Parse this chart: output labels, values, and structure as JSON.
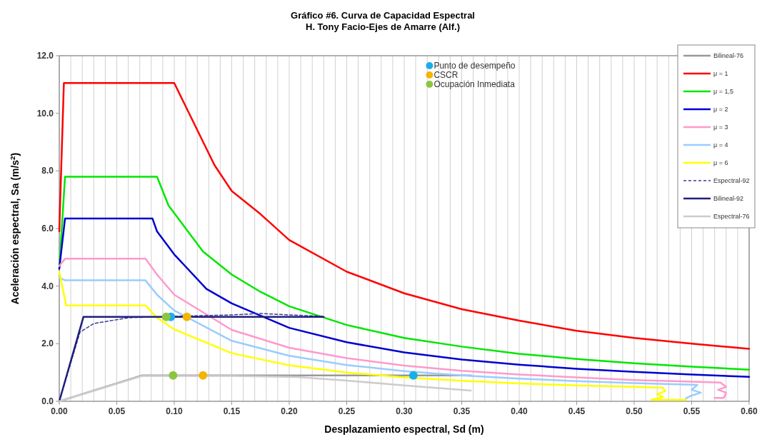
{
  "chart_data": {
    "type": "line",
    "title": "Gráfico #6. Curva de Capacidad Espectral",
    "subtitle": "H. Tony Facio-Ejes de Amarre (Alf.)",
    "xlabel": "Desplazamiento espectral, Sd (m)",
    "ylabel": "Aceleración espectral, Sa (m/s$^{2}$)",
    "xlim": [
      0,
      0.6
    ],
    "ylim": [
      0,
      12
    ],
    "xticks": [
      {
        "value": 0,
        "label": "0.00"
      },
      {
        "value": 0.01,
        "label": null
      },
      {
        "value": 0.02,
        "label": null
      },
      {
        "value": 0.03,
        "label": null
      },
      {
        "value": 0.04,
        "label": null
      },
      {
        "value": 0.05,
        "label": "0.05"
      },
      {
        "value": 0.06,
        "label": null
      },
      {
        "value": 0.07,
        "label": null
      },
      {
        "value": 0.08,
        "label": null
      },
      {
        "value": 0.09,
        "label": null
      },
      {
        "value": 0.1,
        "label": "0.10"
      },
      {
        "value": 0.11,
        "label": null
      },
      {
        "value": 0.12,
        "label": null
      },
      {
        "value": 0.13,
        "label": null
      },
      {
        "value": 0.14,
        "label": null
      },
      {
        "value": 0.15,
        "label": "0.15"
      },
      {
        "value": 0.16,
        "label": null
      },
      {
        "value": 0.17,
        "label": null
      },
      {
        "value": 0.18,
        "label": null
      },
      {
        "value": 0.19,
        "label": null
      },
      {
        "value": 0.2,
        "label": "0.20"
      },
      {
        "value": 0.21,
        "label": null
      },
      {
        "value": 0.22,
        "label": null
      },
      {
        "value": 0.23,
        "label": null
      },
      {
        "value": 0.24,
        "label": null
      },
      {
        "value": 0.25,
        "label": "0.25"
      },
      {
        "value": 0.26,
        "label": null
      },
      {
        "value": 0.27,
        "label": null
      },
      {
        "value": 0.28,
        "label": null
      },
      {
        "value": 0.29,
        "label": null
      },
      {
        "value": 0.3,
        "label": "0.30"
      },
      {
        "value": 0.31,
        "label": null
      },
      {
        "value": 0.32,
        "label": null
      },
      {
        "value": 0.33,
        "label": null
      },
      {
        "value": 0.34,
        "label": null
      },
      {
        "value": 0.35,
        "label": "0.35"
      },
      {
        "value": 0.36,
        "label": null
      },
      {
        "value": 0.37,
        "label": null
      },
      {
        "value": 0.38,
        "label": null
      },
      {
        "value": 0.39,
        "label": null
      },
      {
        "value": 0.4,
        "label": "0.40"
      },
      {
        "value": 0.41,
        "label": null
      },
      {
        "value": 0.42,
        "label": null
      },
      {
        "value": 0.43,
        "label": null
      },
      {
        "value": 0.44,
        "label": null
      },
      {
        "value": 0.45,
        "label": "0.45"
      },
      {
        "value": 0.46,
        "label": null
      },
      {
        "value": 0.47,
        "label": null
      },
      {
        "value": 0.48,
        "label": null
      },
      {
        "value": 0.49,
        "label": null
      },
      {
        "value": 0.5,
        "label": "0.50"
      },
      {
        "value": 0.51,
        "label": null
      },
      {
        "value": 0.52,
        "label": null
      },
      {
        "value": 0.53,
        "label": null
      },
      {
        "value": 0.54,
        "label": null
      },
      {
        "value": 0.55,
        "label": "0.55"
      },
      {
        "value": 0.56,
        "label": null
      },
      {
        "value": 0.57,
        "label": null
      },
      {
        "value": 0.58,
        "label": null
      },
      {
        "value": 0.59,
        "label": null
      },
      {
        "value": 0.6,
        "label": "0.60"
      }
    ],
    "yticks": [
      {
        "value": 0,
        "label": "0.0"
      },
      {
        "value": 2,
        "label": "2.0"
      },
      {
        "value": 4,
        "label": "4.0"
      },
      {
        "value": 6,
        "label": "6.0"
      },
      {
        "value": 8,
        "label": "8.0"
      },
      {
        "value": 10,
        "label": "10.0"
      },
      {
        "value": 12,
        "label": "12.0"
      }
    ],
    "grid": "x",
    "legend": "right",
    "series": [
      {
        "name": "Bilineal-76",
        "color": "#999999",
        "x": [
          0,
          0.072,
          0.358
        ],
        "values": [
          0,
          0.9,
          0.9
        ]
      },
      {
        "name": "μ = 1",
        "color": "#ff0000",
        "x": [
          0,
          0.004,
          0.1,
          0.135,
          0.15,
          0.175,
          0.2,
          0.25,
          0.3,
          0.35,
          0.4,
          0.45,
          0.5,
          0.55,
          0.6
        ],
        "values": [
          5.9,
          11.05,
          11.05,
          8.2,
          7.3,
          6.5,
          5.6,
          4.5,
          3.75,
          3.2,
          2.8,
          2.45,
          2.2,
          2.0,
          1.82
        ]
      },
      {
        "name": "μ = 1,5",
        "color": "#00e600",
        "x": [
          0,
          0.005,
          0.085,
          0.095,
          0.11,
          0.125,
          0.15,
          0.175,
          0.2,
          0.25,
          0.3,
          0.35,
          0.4,
          0.45,
          0.5,
          0.55,
          0.6
        ],
        "values": [
          4.6,
          7.8,
          7.8,
          6.8,
          6.0,
          5.2,
          4.4,
          3.8,
          3.3,
          2.65,
          2.2,
          1.9,
          1.65,
          1.47,
          1.32,
          1.2,
          1.1
        ]
      },
      {
        "name": "μ = 2",
        "color": "#0000d0",
        "x": [
          0,
          0.005,
          0.081,
          0.085,
          0.1,
          0.128,
          0.15,
          0.2,
          0.25,
          0.3,
          0.35,
          0.4,
          0.45,
          0.5,
          0.55,
          0.6
        ],
        "values": [
          4.6,
          6.35,
          6.35,
          5.9,
          5.1,
          3.9,
          3.4,
          2.55,
          2.05,
          1.7,
          1.45,
          1.27,
          1.13,
          1.02,
          0.93,
          0.85
        ]
      },
      {
        "name": "μ = 3",
        "color": "#ff99cc",
        "x": [
          0,
          0.005,
          0.075,
          0.085,
          0.1,
          0.15,
          0.2,
          0.25,
          0.3,
          0.35,
          0.4,
          0.45,
          0.5,
          0.55,
          0.575,
          0.58,
          0.573,
          0.58,
          0.578,
          0.57
        ],
        "values": [
          4.7,
          4.95,
          4.95,
          4.4,
          3.7,
          2.48,
          1.86,
          1.5,
          1.24,
          1.06,
          0.93,
          0.83,
          0.74,
          0.68,
          0.65,
          0.5,
          0.4,
          0.3,
          0.12,
          0.12
        ]
      },
      {
        "name": "μ = 4",
        "color": "#99ccff",
        "x": [
          0,
          0.005,
          0.075,
          0.085,
          0.1,
          0.15,
          0.2,
          0.25,
          0.3,
          0.35,
          0.4,
          0.45,
          0.5,
          0.555,
          0.55,
          0.558,
          0.55,
          0.545
        ],
        "values": [
          4.3,
          4.2,
          4.2,
          3.7,
          3.15,
          2.1,
          1.58,
          1.26,
          1.05,
          0.9,
          0.79,
          0.7,
          0.63,
          0.57,
          0.4,
          0.3,
          0.2,
          0.1
        ]
      },
      {
        "name": "μ = 6",
        "color": "#ffff00",
        "x": [
          0,
          0.006,
          0.075,
          0.085,
          0.1,
          0.15,
          0.2,
          0.25,
          0.3,
          0.35,
          0.4,
          0.45,
          0.5,
          0.525,
          0.527,
          0.52,
          0.525,
          0.515,
          0.545
        ],
        "values": [
          4.5,
          3.33,
          3.33,
          2.9,
          2.5,
          1.67,
          1.25,
          1.0,
          0.83,
          0.71,
          0.62,
          0.55,
          0.5,
          0.47,
          0.35,
          0.25,
          0.15,
          0.05,
          0.05
        ]
      },
      {
        "name": "Espectral-92",
        "line_style": "dashed",
        "color": "#3a3a9a",
        "x": [
          0,
          0.018,
          0.03,
          0.06,
          0.1,
          0.15,
          0.175,
          0.2,
          0.23
        ],
        "values": [
          0,
          2.4,
          2.7,
          2.9,
          2.95,
          3.0,
          3.05,
          3.0,
          2.95
        ]
      },
      {
        "name": "Bilineal-92",
        "color": "#1f1f7f",
        "x": [
          0,
          0.021,
          0.23
        ],
        "values": [
          0,
          2.93,
          2.93
        ]
      },
      {
        "name": "Espectral-76",
        "color": "#cccccc",
        "x": [
          0,
          0.072,
          0.15,
          0.207,
          0.25,
          0.3,
          0.358
        ],
        "values": [
          0,
          0.88,
          0.88,
          0.84,
          0.72,
          0.55,
          0.37
        ]
      },
      {
        "name": "Punto de desempeño",
        "type": "scatter",
        "color": "#1aaee8",
        "x": [
          0.097,
          0.308
        ],
        "values": [
          2.93,
          0.9
        ]
      },
      {
        "name": "CSCR",
        "type": "scatter",
        "color": "#f5b400",
        "x": [
          0.111,
          0.125
        ],
        "values": [
          2.93,
          0.9
        ]
      },
      {
        "name": "Ocupación Inmediata",
        "type": "scatter",
        "color": "#8cc63f",
        "x": [
          0.093,
          0.099
        ],
        "values": [
          2.93,
          0.9
        ]
      }
    ]
  }
}
